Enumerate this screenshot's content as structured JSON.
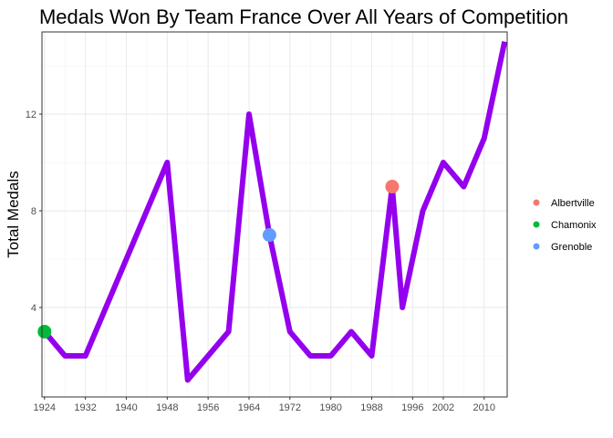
{
  "chart_data": {
    "type": "line",
    "title": "Medals Won By Team France Over All Years of Competition",
    "xlabel": "",
    "ylabel": "Total Medals",
    "xlim": [
      1923.5,
      2014.5
    ],
    "ylim": [
      0.3,
      15.4
    ],
    "x_ticks": [
      1924,
      1932,
      1940,
      1948,
      1956,
      1964,
      1972,
      1980,
      1988,
      1996,
      2002,
      2010
    ],
    "y_ticks": [
      4,
      8,
      12
    ],
    "y_tick_labels": [
      "4",
      "8",
      "12"
    ],
    "line_color": "#9400ee",
    "series": [
      {
        "name": "Total Medals",
        "x": [
          1924,
          1928,
          1932,
          1948,
          1952,
          1960,
          1964,
          1968,
          1972,
          1976,
          1980,
          1984,
          1988,
          1992,
          1994,
          1998,
          2002,
          2006,
          2010,
          2014
        ],
        "values": [
          3,
          2,
          2,
          10,
          1,
          3,
          12,
          7,
          3,
          2,
          2,
          3,
          2,
          9,
          4,
          8,
          10,
          9,
          11,
          15
        ]
      }
    ],
    "host_points": [
      {
        "name": "Albertville",
        "x": 1992,
        "y": 9,
        "color": "#f8766d"
      },
      {
        "name": "Chamonix",
        "x": 1924,
        "y": 3,
        "color": "#00ba38"
      },
      {
        "name": "Grenoble",
        "x": 1968,
        "y": 7,
        "color": "#619cff"
      }
    ],
    "legend": {
      "position": "right",
      "items": [
        {
          "label": "Albertville",
          "color": "#f8766d"
        },
        {
          "label": "Chamonix",
          "color": "#00ba38"
        },
        {
          "label": "Grenoble",
          "color": "#619cff"
        }
      ]
    },
    "grid": true
  }
}
